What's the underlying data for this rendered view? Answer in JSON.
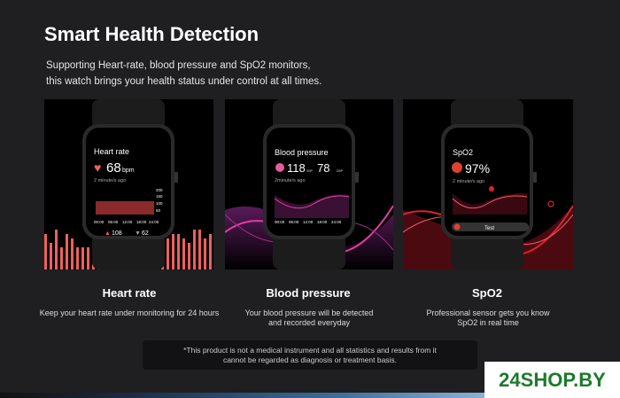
{
  "header": {
    "title": "Smart Health Detection",
    "subtitle_line1": "Supporting Heart-rate, blood pressure and SpO2 monitors,",
    "subtitle_line2": "this watch brings your health status under control at all times."
  },
  "features": [
    {
      "title": "Heart rate",
      "desc_line1": "Keep your heart rate under monitoring for 24 hours",
      "desc_line2": "",
      "screen": {
        "heading": "Heart rate",
        "value": "68",
        "unit": "bpm",
        "time": "2 minute/s ago",
        "y_ticks": [
          "200",
          "150",
          "100",
          "50"
        ],
        "x_ticks": [
          "00:00",
          "06:00",
          "12:00",
          "18:00",
          "24:00"
        ],
        "max": "108",
        "min": "62"
      },
      "color": "#f0605e"
    },
    {
      "title": "Blood pressure",
      "desc_line1": "Your blood pressure will be detected",
      "desc_line2": "and recorded everyday",
      "screen": {
        "heading": "Blood pressure",
        "sbp": "118",
        "sbp_label": "SBP",
        "dbp": "78",
        "dbp_label": "DBP",
        "time": "2minute/s ago",
        "x_ticks": [
          "00:00",
          "06:00",
          "12:00",
          "18:00",
          "24:00"
        ]
      },
      "color": "#e040a0"
    },
    {
      "title": "SpO2",
      "desc_line1": "Professional sensor gets you know",
      "desc_line2": "SpO2 in real time",
      "screen": {
        "heading": "SpO2",
        "value": "97%",
        "time": "2 minute/s ago",
        "button": "Test"
      },
      "color": "#e02030"
    }
  ],
  "disclaimer": {
    "line1": "*This product is not a medical instrument and all statistics and results from it",
    "line2": "cannot be regarded as diagnosis or treatment basis."
  },
  "watermark": "24SHOP.BY"
}
